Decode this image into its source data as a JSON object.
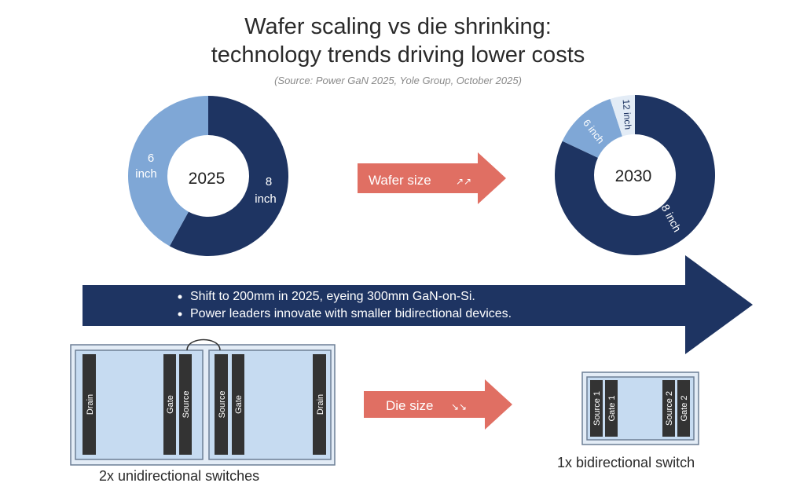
{
  "title": {
    "line1": "Wafer scaling vs die shrinking:",
    "line2": "technology trends driving lower costs"
  },
  "source": "(Source: Power GaN 2025, Yole Group, October 2025)",
  "colors": {
    "navy": "#1e3462",
    "light_blue": "#7fa7d6",
    "pale_blue": "#e3ecf6",
    "coral": "#e06f63",
    "die_fill": "#c6dbf1",
    "die_border": "#6d7f95",
    "bar": "#333333"
  },
  "chart_data": [
    {
      "type": "pie",
      "title": "2025",
      "labels": [
        "8 inch",
        "6 inch"
      ],
      "values": [
        58,
        42
      ]
    },
    {
      "type": "pie",
      "title": "2030",
      "labels": [
        "8 inch",
        "6 inch",
        "12 inch"
      ],
      "values": [
        82,
        13,
        5
      ]
    }
  ],
  "arrows": {
    "wafer_label": "Wafer size",
    "wafer_icon": "↗↗",
    "die_label": "Die size",
    "die_icon": "↘↘"
  },
  "bullets": [
    "Shift to 200mm in 2025, eyeing 300mm GaN-on-Si.",
    "Power leaders innovate with smaller bidirectional devices."
  ],
  "die": {
    "left": {
      "drain1": "Drain",
      "gate1": "Gate",
      "source1": "Source",
      "source2": "Source",
      "gate2": "Gate",
      "drain2": "Drain",
      "caption": "2x unidirectional switches"
    },
    "right": {
      "source1": "Source 1",
      "gate1": "Gate 1",
      "source2": "Source 2",
      "gate2": "Gate 2",
      "caption": "1x bidirectional switch"
    }
  }
}
